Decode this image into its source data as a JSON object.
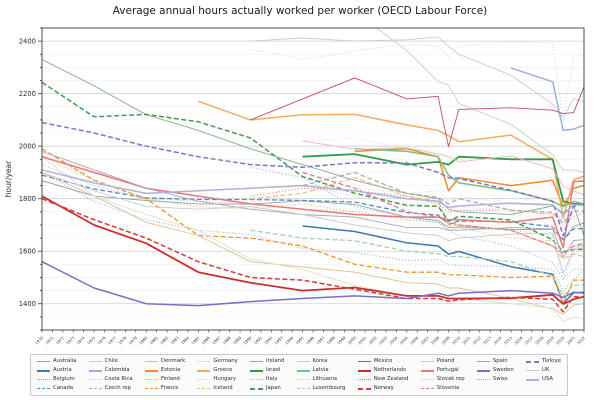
{
  "title": "Average annual hours actually worked per worker (OECD Labour Force)",
  "ylabel": "hour/year",
  "chart_data": {
    "type": "line",
    "title": "Average annual hours actually worked per worker (OECD Labour Force)",
    "xlabel": "",
    "ylabel": "hour/year",
    "x_range": [
      1970,
      2022
    ],
    "x_tick_every_year": true,
    "ylim": [
      1300,
      2450
    ],
    "yticks": [
      1400,
      1600,
      1800,
      2000,
      2200,
      2400
    ],
    "grid": true,
    "legend_position": "bottom",
    "legend_columns": [
      4,
      4,
      4,
      4,
      4,
      4,
      4,
      4,
      3,
      3
    ],
    "sample_years": [
      1970,
      1975,
      1980,
      1985,
      1990,
      1995,
      2000,
      2005,
      2008,
      2009,
      2010,
      2015,
      2019,
      2020,
      2021,
      2022
    ],
    "series": [
      {
        "name": "Australia",
        "color": "#9aa0a8",
        "dash": "solid",
        "w": 0.9,
        "values": [
          1869,
          1810,
          1793,
          1780,
          1779,
          1792,
          1778,
          1730,
          1717,
          1690,
          1693,
          1683,
          1683,
          1643,
          1694,
          1707
        ]
      },
      {
        "name": "Austria",
        "color": "#3d77b6",
        "dash": "solid",
        "w": 1.5,
        "values": [
          null,
          null,
          null,
          null,
          null,
          1696,
          1675,
          1632,
          1620,
          1589,
          1599,
          1541,
          1512,
          1400,
          1442,
          1444
        ]
      },
      {
        "name": "Belgium",
        "color": "#8ea6c4",
        "dash": "dot",
        "w": 1.0,
        "values": [
          1900,
          1790,
          1720,
          1680,
          1663,
          1610,
          1595,
          1565,
          1568,
          1548,
          1546,
          1541,
          1531,
          1448,
          1493,
          1527
        ]
      },
      {
        "name": "Canada",
        "color": "#4e8fca",
        "dash": "dash",
        "w": 1.3,
        "values": [
          1890,
          1837,
          1803,
          1797,
          1797,
          1793,
          1787,
          1747,
          1738,
          1702,
          1715,
          1712,
          1693,
          1644,
          1685,
          1686
        ]
      },
      {
        "name": "Chile",
        "color": "#c7cdd4",
        "dash": "solid",
        "w": 0.9,
        "values": [
          null,
          null,
          null,
          null,
          2400,
          2412,
          2400,
          2405,
          2416,
          2380,
          2350,
          2270,
          2160,
          2110,
          2180,
          2170
        ]
      },
      {
        "name": "Colombia",
        "color": "#9fb0dc",
        "dash": "solid",
        "w": 1.5,
        "values": [
          null,
          null,
          null,
          null,
          null,
          null,
          null,
          null,
          null,
          null,
          null,
          2298,
          2245,
          2060,
          2065,
          2080
        ]
      },
      {
        "name": "Costa Rica",
        "color": "#ccd2d9",
        "dash": "dot",
        "w": 1.0,
        "values": [
          null,
          null,
          null,
          null,
          2370,
          2330,
          2362,
          2390,
          2380,
          2340,
          2380,
          2400,
          2390,
          2100,
          2340,
          2350
        ]
      },
      {
        "name": "Czech rep",
        "color": "#a8adb5",
        "dash": "dash",
        "w": 1.3,
        "values": [
          null,
          null,
          null,
          null,
          null,
          1850,
          1900,
          1820,
          1805,
          1780,
          1800,
          1756,
          1748,
          1705,
          1753,
          1754
        ]
      },
      {
        "name": "Denmark",
        "color": "#dfc08c",
        "dash": "solid",
        "w": 0.9,
        "values": [
          1900,
          1810,
          1710,
          1660,
          1560,
          1540,
          1520,
          1480,
          1475,
          1460,
          1460,
          1420,
          1380,
          1360,
          1395,
          1400
        ]
      },
      {
        "name": "Estonia",
        "color": "#f08a2e",
        "dash": "solid",
        "w": 1.5,
        "values": [
          null,
          null,
          null,
          null,
          null,
          null,
          1980,
          1990,
          1960,
          1830,
          1880,
          1850,
          1870,
          1770,
          1840,
          1850
        ]
      },
      {
        "name": "Finland",
        "color": "#f2b266",
        "dash": "dot",
        "w": 1.0,
        "values": [
          1960,
          1870,
          1800,
          1770,
          1760,
          1780,
          1750,
          1720,
          1710,
          1680,
          1690,
          1650,
          1640,
          1580,
          1620,
          1620
        ]
      },
      {
        "name": "France",
        "color": "#ef9433",
        "dash": "dash",
        "w": 1.3,
        "values": [
          1990,
          1870,
          1800,
          1660,
          1650,
          1620,
          1550,
          1520,
          1520,
          1510,
          1510,
          1500,
          1505,
          1402,
          1490,
          1490
        ]
      },
      {
        "name": "Germany",
        "color": "#e3ddd2",
        "dash": "solid",
        "w": 0.9,
        "values": [
          1960,
          1810,
          1740,
          1680,
          1570,
          1530,
          1470,
          1430,
          1430,
          1400,
          1420,
          1400,
          1383,
          1332,
          1349,
          1341
        ]
      },
      {
        "name": "Greece",
        "color": "#f5aa63",
        "dash": "solid",
        "w": 1.5,
        "values": [
          null,
          null,
          null,
          2171,
          2100,
          2120,
          2121,
          2081,
          2060,
          2040,
          2017,
          2042,
          1949,
          1728,
          1872,
          1886
        ]
      },
      {
        "name": "Hungary",
        "color": "#f6d3ae",
        "dash": "dot",
        "w": 1.0,
        "values": [
          null,
          null,
          null,
          null,
          null,
          2020,
          2030,
          1990,
          1980,
          1960,
          1958,
          1749,
          1741,
          1700,
          1730,
          1700
        ]
      },
      {
        "name": "Iceland",
        "color": "#f5c289",
        "dash": "dash",
        "w": 1.3,
        "values": [
          null,
          null,
          null,
          null,
          1800,
          1820,
          1880,
          1810,
          1790,
          1700,
          1700,
          1680,
          1620,
          1570,
          1590,
          1580
        ]
      },
      {
        "name": "Ireland",
        "color": "#84b08f",
        "dash": "solid",
        "w": 0.9,
        "values": [
          2330,
          2230,
          2120,
          2060,
          1990,
          1930,
          1870,
          1820,
          1800,
          1760,
          1750,
          1740,
          1772,
          1746,
          1775,
          1658
        ]
      },
      {
        "name": "Israel",
        "color": "#2e9e45",
        "dash": "solid",
        "w": 1.8,
        "values": [
          null,
          null,
          null,
          null,
          null,
          1960,
          1970,
          1930,
          1940,
          1930,
          1960,
          1950,
          1950,
          1790,
          1780,
          1780
        ]
      },
      {
        "name": "Italy",
        "color": "#a3bca9",
        "dash": "dot",
        "w": 1.0,
        "values": [
          1930,
          1850,
          1800,
          1790,
          1780,
          1760,
          1750,
          1720,
          1710,
          1690,
          1690,
          1680,
          1660,
          1490,
          1600,
          1620
        ]
      },
      {
        "name": "Japan",
        "color": "#3f9d52",
        "dash": "dash",
        "w": 1.5,
        "values": [
          2243,
          2112,
          2121,
          2093,
          2031,
          1884,
          1821,
          1775,
          1771,
          1714,
          1733,
          1719,
          1644,
          1598,
          1607,
          1607
        ]
      },
      {
        "name": "Korea",
        "color": "#bcd8bd",
        "dash": "solid",
        "w": 0.9,
        "values": [
          null,
          null,
          null,
          null,
          null,
          null,
          2512,
          2364,
          2246,
          2232,
          2163,
          2083,
          1967,
          1908,
          1910,
          1901
        ]
      },
      {
        "name": "Latvia",
        "color": "#79c27e",
        "dash": "solid",
        "w": 1.5,
        "values": [
          null,
          null,
          null,
          null,
          null,
          null,
          1990,
          1980,
          1960,
          1890,
          1860,
          1830,
          1790,
          1770,
          1790,
          1780
        ]
      },
      {
        "name": "Lithuania",
        "color": "#c2dcc3",
        "dash": "dot",
        "w": 1.0,
        "values": [
          null,
          null,
          null,
          null,
          null,
          null,
          1840,
          1820,
          1830,
          1790,
          1810,
          1780,
          1770,
          1740,
          1760,
          1770
        ]
      },
      {
        "name": "Luxembourg",
        "color": "#a9d3ab",
        "dash": "dash",
        "w": 1.3,
        "values": [
          null,
          null,
          null,
          null,
          1680,
          1650,
          1640,
          1600,
          1590,
          1580,
          1580,
          1560,
          1506,
          1430,
          1470,
          1473
        ]
      },
      {
        "name": "Mexico",
        "color": "#c64a60",
        "dash": "solid",
        "w": 0.9,
        "values": [
          null,
          null,
          null,
          null,
          2100,
          2180,
          2260,
          2180,
          2190,
          1998,
          2140,
          2146,
          2137,
          2124,
          2128,
          2226
        ]
      },
      {
        "name": "Netherlands",
        "color": "#cc2d2d",
        "dash": "solid",
        "w": 1.8,
        "values": [
          1810,
          1700,
          1630,
          1520,
          1480,
          1450,
          1462,
          1430,
          1430,
          1420,
          1420,
          1421,
          1434,
          1399,
          1417,
          1427
        ]
      },
      {
        "name": "New Zealand",
        "color": "#e26d6d",
        "dash": "dot",
        "w": 1.0,
        "values": [
          null,
          null,
          null,
          null,
          1810,
          1840,
          1830,
          1810,
          1780,
          1750,
          1755,
          1757,
          1740,
          1720,
          1730,
          1748
        ]
      },
      {
        "name": "Norway",
        "color": "#d23c3c",
        "dash": "dash",
        "w": 1.5,
        "values": [
          1800,
          1720,
          1650,
          1560,
          1500,
          1490,
          1455,
          1420,
          1420,
          1410,
          1415,
          1424,
          1417,
          1369,
          1427,
          1425
        ]
      },
      {
        "name": "Poland",
        "color": "#f0b6c4",
        "dash": "solid",
        "w": 0.9,
        "values": [
          null,
          null,
          null,
          null,
          null,
          2020,
          1988,
          1994,
          1970,
          1960,
          1940,
          1963,
          1914,
          1848,
          1830,
          1815
        ]
      },
      {
        "name": "Portugal",
        "color": "#e87878",
        "dash": "solid",
        "w": 1.5,
        "values": [
          1960,
          1900,
          1840,
          1810,
          1780,
          1760,
          1740,
          1730,
          1730,
          1720,
          1720,
          1710,
          1730,
          1613,
          1865,
          1867
        ]
      },
      {
        "name": "Slovak rep",
        "color": "#f3c3ce",
        "dash": "dot",
        "w": 1.0,
        "values": [
          null,
          null,
          null,
          null,
          null,
          1850,
          1810,
          1770,
          1790,
          1760,
          1770,
          1754,
          1695,
          1572,
          1583,
          1622
        ]
      },
      {
        "name": "Slovenia",
        "color": "#e2798f",
        "dash": "dash",
        "w": 1.3,
        "values": [
          null,
          null,
          null,
          null,
          null,
          1900,
          1840,
          1750,
          1730,
          1710,
          1700,
          1680,
          1620,
          1590,
          1620,
          1630
        ]
      },
      {
        "name": "Spain",
        "color": "#a9a5b0",
        "dash": "solid",
        "w": 0.9,
        "values": [
          1980,
          1910,
          1840,
          1790,
          1760,
          1740,
          1730,
          1690,
          1690,
          1680,
          1680,
          1690,
          1685,
          1577,
          1641,
          1644
        ]
      },
      {
        "name": "Sweden",
        "color": "#7b6ec5",
        "dash": "solid",
        "w": 1.5,
        "values": [
          1560,
          1460,
          1400,
          1393,
          1408,
          1420,
          1430,
          1420,
          1440,
          1430,
          1440,
          1450,
          1440,
          1424,
          1444,
          1440
        ]
      },
      {
        "name": "Swiss",
        "color": "#aaa2cc",
        "dash": "dot",
        "w": 1.0,
        "values": [
          null,
          null,
          null,
          null,
          1920,
          1880,
          1770,
          1730,
          1710,
          1680,
          1660,
          1620,
          1557,
          1495,
          1533,
          1529
        ]
      },
      {
        "name": "Türkiye",
        "color": "#7d74cb",
        "dash": "dash",
        "w": 1.5,
        "values": [
          2090,
          2050,
          2000,
          1960,
          1930,
          1920,
          1937,
          1936,
          1900,
          1880,
          1877,
          1832,
          1790,
          1659,
          1770,
          1779
        ]
      },
      {
        "name": "UK",
        "color": "#c6cbd2",
        "dash": "solid",
        "w": 0.9,
        "values": [
          1900,
          1830,
          1770,
          1760,
          1770,
          1740,
          1700,
          1670,
          1660,
          1640,
          1650,
          1665,
          1669,
          1516,
          1607,
          1626
        ]
      },
      {
        "name": "USA",
        "color": "#b5aed8",
        "dash": "solid",
        "w": 1.5,
        "values": [
          1910,
          1860,
          1820,
          1830,
          1840,
          1850,
          1830,
          1800,
          1790,
          1767,
          1772,
          1783,
          1777,
          1738,
          1777,
          1775
        ]
      }
    ]
  }
}
